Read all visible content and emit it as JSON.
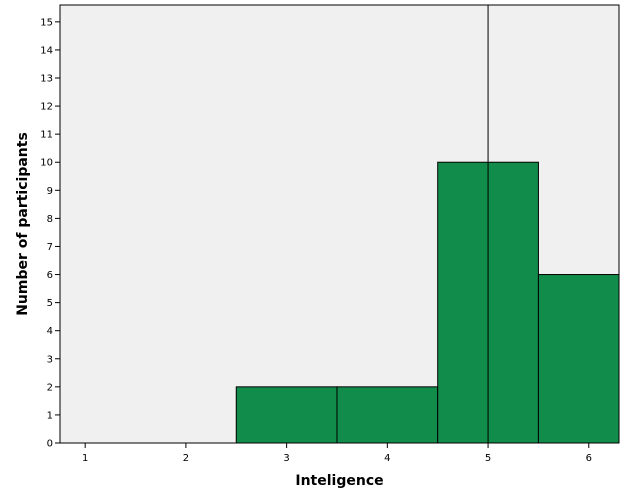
{
  "chart_data": {
    "type": "bar",
    "title": "",
    "xlabel": "Inteligence",
    "ylabel": "Number of participants",
    "xlim": [
      0.75,
      6.3
    ],
    "ylim": [
      0,
      15.6
    ],
    "x_ticks": [
      1,
      2,
      3,
      4,
      5,
      6
    ],
    "y_ticks": [
      0,
      1,
      2,
      3,
      4,
      5,
      6,
      7,
      8,
      9,
      10,
      11,
      12,
      13,
      14,
      15
    ],
    "bins": [
      {
        "start": 2.5,
        "end": 3.5,
        "count": 2
      },
      {
        "start": 3.5,
        "end": 4.5,
        "count": 2
      },
      {
        "start": 4.5,
        "end": 5.5,
        "count": 10
      },
      {
        "start": 5.5,
        "end": 6.5,
        "count": 6
      }
    ],
    "reference_line_x": 5,
    "grid": false,
    "colors": {
      "bar_fill": "#118C4A",
      "plot_background": "#F0F0F0",
      "outline": "#000000"
    }
  }
}
